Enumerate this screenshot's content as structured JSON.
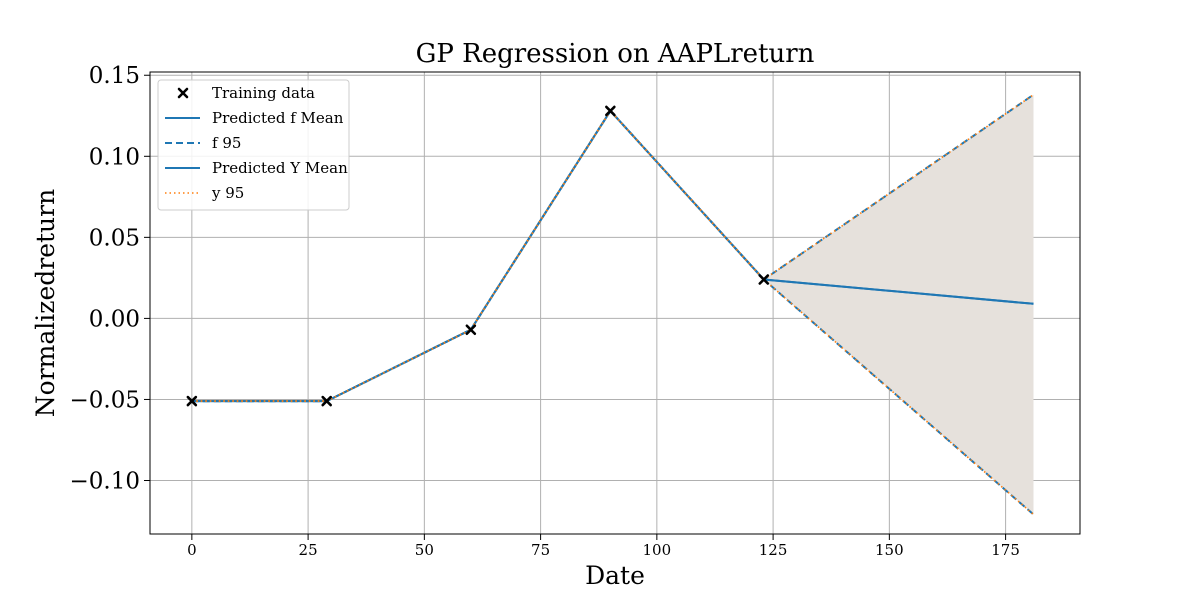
{
  "chart_data": {
    "type": "line",
    "title": "GP Regression on AAPLreturn",
    "xlabel": "Date",
    "ylabel": "Normalizedreturn",
    "xlim": [
      -9,
      191
    ],
    "ylim": [
      -0.133,
      0.152
    ],
    "xticks": [
      0,
      25,
      50,
      75,
      100,
      125,
      150,
      175
    ],
    "yticks": [
      -0.1,
      -0.05,
      0.0,
      0.05,
      0.1,
      0.15
    ],
    "ytick_labels": [
      "−0.10",
      "−0.05",
      "0.00",
      "0.05",
      "0.10",
      "0.15"
    ],
    "grid": true,
    "legend_position": "upper-left",
    "colors": {
      "blue": "#1f77b4",
      "orange": "#ff7f0e",
      "band": "#e6e1dc",
      "grid": "#b0b0b0",
      "marker": "#000000"
    },
    "training_data": {
      "x": [
        0,
        29,
        60,
        90,
        123
      ],
      "y": [
        -0.051,
        -0.051,
        -0.007,
        0.128,
        0.024
      ]
    },
    "predicted_mean": {
      "x": [
        0,
        29,
        60,
        90,
        123,
        181
      ],
      "y": [
        -0.051,
        -0.051,
        -0.007,
        0.128,
        0.024,
        0.009
      ]
    },
    "ci_upper": {
      "x": [
        0,
        29,
        60,
        90,
        123,
        181
      ],
      "y": [
        -0.051,
        -0.051,
        -0.007,
        0.128,
        0.024,
        0.138
      ]
    },
    "ci_lower": {
      "x": [
        0,
        29,
        60,
        90,
        123,
        181
      ],
      "y": [
        -0.051,
        -0.051,
        -0.007,
        0.128,
        0.024,
        -0.121
      ]
    },
    "legend": [
      {
        "label": "Training data",
        "style": "marker-x",
        "color": "#000000"
      },
      {
        "label": "Predicted f Mean",
        "style": "solid",
        "color": "#1f77b4"
      },
      {
        "label": "f 95",
        "style": "dashed",
        "color": "#1f77b4"
      },
      {
        "label": "Predicted Y Mean",
        "style": "solid",
        "color": "#1f77b4"
      },
      {
        "label": "y 95",
        "style": "dotted",
        "color": "#ff7f0e"
      }
    ]
  }
}
